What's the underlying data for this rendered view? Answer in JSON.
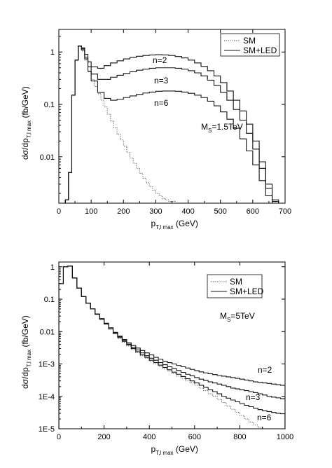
{
  "chart_data": [
    {
      "type": "line",
      "step": true,
      "xlabel_main": "p",
      "xlabel_sub": "T,l max",
      "xlabel_unit": " (GeV)",
      "ylabel_main": "dσ/dp",
      "ylabel_sub": "T,l max",
      "ylabel_unit": " (fb/GeV)",
      "yscale": "log",
      "xlim": [
        0,
        700
      ],
      "ylim": [
        0.0013,
        2.7
      ],
      "xticks": [
        0,
        100,
        200,
        300,
        400,
        500,
        600,
        700
      ],
      "xtick_labels": [
        "0",
        "100",
        "200",
        "300",
        "400",
        "500",
        "600",
        "700"
      ],
      "yticks": [
        0.01,
        0.1,
        1
      ],
      "ytick_labels": [
        "0.01",
        "0.1",
        "1"
      ],
      "legend": {
        "position": "top-right",
        "entries": [
          "SM",
          "SM+LED"
        ]
      },
      "annotations": {
        "n2": "n=2",
        "n3": "n=3",
        "n6": "n=6",
        "ms_main": "M",
        "ms_sub": "S",
        "ms_value": "=1.5TeV"
      },
      "series": [
        {
          "name": "SM",
          "style": "dotted",
          "x": [
            20,
            30,
            40,
            50,
            60,
            70,
            80,
            90,
            100,
            110,
            120,
            130,
            140,
            150,
            160,
            170,
            180,
            190,
            200,
            210,
            220,
            230,
            240,
            250,
            260,
            270,
            280,
            290,
            300,
            310,
            320,
            330,
            340,
            350,
            360,
            370
          ],
          "y": [
            0.0015,
            0.005,
            0.15,
            0.7,
            1.3,
            1.05,
            0.7,
            0.42,
            0.3,
            0.22,
            0.16,
            0.12,
            0.09,
            0.065,
            0.048,
            0.036,
            0.027,
            0.021,
            0.016,
            0.012,
            0.0095,
            0.0075,
            0.006,
            0.0048,
            0.0039,
            0.0032,
            0.0027,
            0.0023,
            0.002,
            0.0018,
            0.0016,
            0.0015,
            0.0014,
            0.0014,
            0.0013,
            0.0013
          ]
        },
        {
          "name": "n=2",
          "style": "solid",
          "x": [
            20,
            30,
            40,
            50,
            60,
            70,
            80,
            90,
            100,
            120,
            140,
            160,
            180,
            200,
            220,
            240,
            260,
            280,
            300,
            320,
            340,
            360,
            380,
            400,
            420,
            440,
            460,
            480,
            500,
            520,
            540,
            560,
            580,
            600,
            620,
            640,
            660,
            680
          ],
          "y": [
            0.0015,
            0.005,
            0.15,
            0.7,
            1.3,
            1.2,
            0.9,
            0.65,
            0.52,
            0.49,
            0.55,
            0.62,
            0.68,
            0.74,
            0.79,
            0.83,
            0.86,
            0.88,
            0.89,
            0.88,
            0.86,
            0.82,
            0.77,
            0.7,
            0.62,
            0.53,
            0.44,
            0.35,
            0.26,
            0.18,
            0.12,
            0.075,
            0.042,
            0.02,
            0.008,
            0.003,
            0.0015,
            0.0013
          ]
        },
        {
          "name": "n=3",
          "style": "solid",
          "x": [
            20,
            30,
            40,
            50,
            60,
            70,
            80,
            90,
            100,
            120,
            140,
            160,
            180,
            200,
            220,
            240,
            260,
            280,
            300,
            320,
            340,
            360,
            380,
            400,
            420,
            440,
            460,
            480,
            500,
            520,
            540,
            560,
            580,
            600,
            620,
            640,
            660,
            680
          ],
          "y": [
            0.0015,
            0.005,
            0.15,
            0.7,
            1.3,
            1.15,
            0.8,
            0.52,
            0.38,
            0.3,
            0.3,
            0.33,
            0.36,
            0.39,
            0.42,
            0.45,
            0.47,
            0.49,
            0.5,
            0.5,
            0.5,
            0.49,
            0.47,
            0.44,
            0.4,
            0.35,
            0.29,
            0.23,
            0.17,
            0.12,
            0.08,
            0.05,
            0.028,
            0.014,
            0.006,
            0.0025,
            0.0014,
            0.0013
          ]
        },
        {
          "name": "n=6",
          "style": "solid",
          "x": [
            20,
            30,
            40,
            50,
            60,
            70,
            80,
            90,
            100,
            120,
            140,
            160,
            180,
            200,
            220,
            240,
            260,
            280,
            300,
            320,
            340,
            360,
            380,
            400,
            420,
            440,
            460,
            480,
            500,
            520,
            540,
            560,
            580,
            600,
            620,
            640,
            660,
            680
          ],
          "y": [
            0.0015,
            0.005,
            0.15,
            0.7,
            1.3,
            1.1,
            0.74,
            0.43,
            0.28,
            0.17,
            0.13,
            0.12,
            0.125,
            0.135,
            0.145,
            0.155,
            0.165,
            0.172,
            0.178,
            0.18,
            0.18,
            0.178,
            0.172,
            0.163,
            0.15,
            0.135,
            0.115,
            0.094,
            0.072,
            0.052,
            0.035,
            0.022,
            0.013,
            0.007,
            0.0035,
            0.0018,
            0.0013,
            0.0013
          ]
        }
      ]
    },
    {
      "type": "line",
      "step": true,
      "xlabel_main": "p",
      "xlabel_sub": "T,l max",
      "xlabel_unit": " (GeV)",
      "ylabel_main": "dσ/dp",
      "ylabel_sub": "T,l max",
      "ylabel_unit": " (fb/GeV)",
      "yscale": "log",
      "xlim": [
        0,
        1000
      ],
      "ylim": [
        1e-05,
        1.4
      ],
      "xticks": [
        0,
        200,
        400,
        600,
        800,
        1000
      ],
      "xtick_labels": [
        "0",
        "200",
        "400",
        "600",
        "800",
        "1000"
      ],
      "yticks": [
        1e-05,
        0.0001,
        0.001,
        0.01,
        0.1,
        1
      ],
      "ytick_labels": [
        "1E-5",
        "1E-4",
        "1E-3",
        "0.01",
        "0.1",
        "1"
      ],
      "legend": {
        "position": "top-right",
        "entries": [
          "SM",
          "SM+LED"
        ]
      },
      "annotations": {
        "n2": "n=2",
        "n3": "n=3",
        "n6": "n=6",
        "ms_main": "M",
        "ms_sub": "S",
        "ms_value": "=5TeV"
      },
      "series": [
        {
          "name": "SM",
          "style": "dotted",
          "x": [
            0,
            20,
            40,
            60,
            80,
            100,
            120,
            140,
            160,
            180,
            200,
            220,
            240,
            260,
            280,
            300,
            320,
            340,
            360,
            380,
            400,
            420,
            440,
            460,
            480,
            500,
            520,
            540,
            560,
            580,
            600,
            620,
            640,
            660,
            680,
            700,
            720,
            740,
            760,
            780,
            800,
            820,
            840,
            860,
            880,
            900
          ],
          "y": [
            0.3,
            1.0,
            1.05,
            0.45,
            0.22,
            0.12,
            0.075,
            0.05,
            0.034,
            0.024,
            0.017,
            0.012,
            0.0085,
            0.0062,
            0.0047,
            0.0036,
            0.0028,
            0.0022,
            0.0018,
            0.0015,
            0.0012,
            0.001,
            0.00085,
            0.0007,
            0.0006,
            0.0005,
            0.00042,
            0.00036,
            0.0003,
            0.00026,
            0.00022,
            0.00018,
            0.00015,
            0.00012,
            0.0001,
            8e-05,
            6.5e-05,
            5e-05,
            4e-05,
            3.2e-05,
            2.6e-05,
            2e-05,
            1.6e-05,
            1.3e-05,
            1.1e-05,
            1e-05
          ]
        },
        {
          "name": "n=2",
          "style": "solid",
          "x": [
            0,
            20,
            40,
            60,
            80,
            100,
            120,
            140,
            160,
            180,
            200,
            220,
            240,
            260,
            280,
            300,
            320,
            340,
            360,
            380,
            400,
            420,
            440,
            460,
            480,
            500,
            520,
            540,
            560,
            580,
            600,
            620,
            640,
            660,
            680,
            700,
            720,
            740,
            760,
            780,
            800,
            820,
            840,
            860,
            880,
            900,
            920,
            940,
            960,
            980
          ],
          "y": [
            0.3,
            1.0,
            1.05,
            0.45,
            0.22,
            0.12,
            0.075,
            0.05,
            0.035,
            0.025,
            0.018,
            0.013,
            0.0095,
            0.0072,
            0.0057,
            0.0045,
            0.0037,
            0.0031,
            0.0026,
            0.0022,
            0.0019,
            0.0016,
            0.0014,
            0.0012,
            0.0011,
            0.001,
            0.0009,
            0.00082,
            0.00075,
            0.00068,
            0.00062,
            0.00057,
            0.00053,
            0.0005,
            0.00047,
            0.00044,
            0.00042,
            0.0004,
            0.00038,
            0.00036,
            0.00034,
            0.00032,
            0.0003,
            0.00028,
            0.00027,
            0.00026,
            0.00025,
            0.00024,
            0.00023,
            0.00022
          ]
        },
        {
          "name": "n=3",
          "style": "solid",
          "x": [
            0,
            20,
            40,
            60,
            80,
            100,
            120,
            140,
            160,
            180,
            200,
            220,
            240,
            260,
            280,
            300,
            320,
            340,
            360,
            380,
            400,
            420,
            440,
            460,
            480,
            500,
            520,
            540,
            560,
            580,
            600,
            620,
            640,
            660,
            680,
            700,
            720,
            740,
            760,
            780,
            800,
            820,
            840,
            860,
            880,
            900,
            920,
            940,
            960,
            980
          ],
          "y": [
            0.3,
            1.0,
            1.05,
            0.45,
            0.22,
            0.12,
            0.075,
            0.05,
            0.035,
            0.025,
            0.018,
            0.013,
            0.0093,
            0.0069,
            0.0053,
            0.0041,
            0.0033,
            0.0027,
            0.0022,
            0.0018,
            0.0015,
            0.0013,
            0.0011,
            0.00095,
            0.00082,
            0.00072,
            0.00063,
            0.00055,
            0.00048,
            0.00043,
            0.00038,
            0.00034,
            0.00031,
            0.00028,
            0.00026,
            0.00024,
            0.00022,
            0.0002,
            0.00018,
            0.00017,
            0.00016,
            0.00015,
            0.00014,
            0.00013,
            0.00012,
            0.00011,
            0.0001,
            9.5e-05,
            9e-05,
            8.5e-05
          ]
        },
        {
          "name": "n=6",
          "style": "solid",
          "x": [
            0,
            20,
            40,
            60,
            80,
            100,
            120,
            140,
            160,
            180,
            200,
            220,
            240,
            260,
            280,
            300,
            320,
            340,
            360,
            380,
            400,
            420,
            440,
            460,
            480,
            500,
            520,
            540,
            560,
            580,
            600,
            620,
            640,
            660,
            680,
            700,
            720,
            740,
            760,
            780,
            800,
            820,
            840,
            860,
            880,
            900,
            920,
            940,
            960,
            980
          ],
          "y": [
            0.3,
            1.0,
            1.05,
            0.45,
            0.22,
            0.12,
            0.075,
            0.05,
            0.034,
            0.024,
            0.017,
            0.012,
            0.0088,
            0.0065,
            0.005,
            0.0039,
            0.003,
            0.0024,
            0.0019,
            0.0016,
            0.0013,
            0.0011,
            0.00092,
            0.00078,
            0.00066,
            0.00056,
            0.00048,
            0.00041,
            0.00035,
            0.0003,
            0.00026,
            0.00022,
            0.00019,
            0.00016,
            0.00014,
            0.00012,
            0.0001,
            8.8e-05,
            7.7e-05,
            6.8e-05,
            6e-05,
            5.3e-05,
            4.8e-05,
            4.3e-05,
            3.9e-05,
            3.6e-05,
            3.4e-05,
            3.2e-05,
            3e-05,
            2.9e-05
          ]
        }
      ]
    }
  ]
}
